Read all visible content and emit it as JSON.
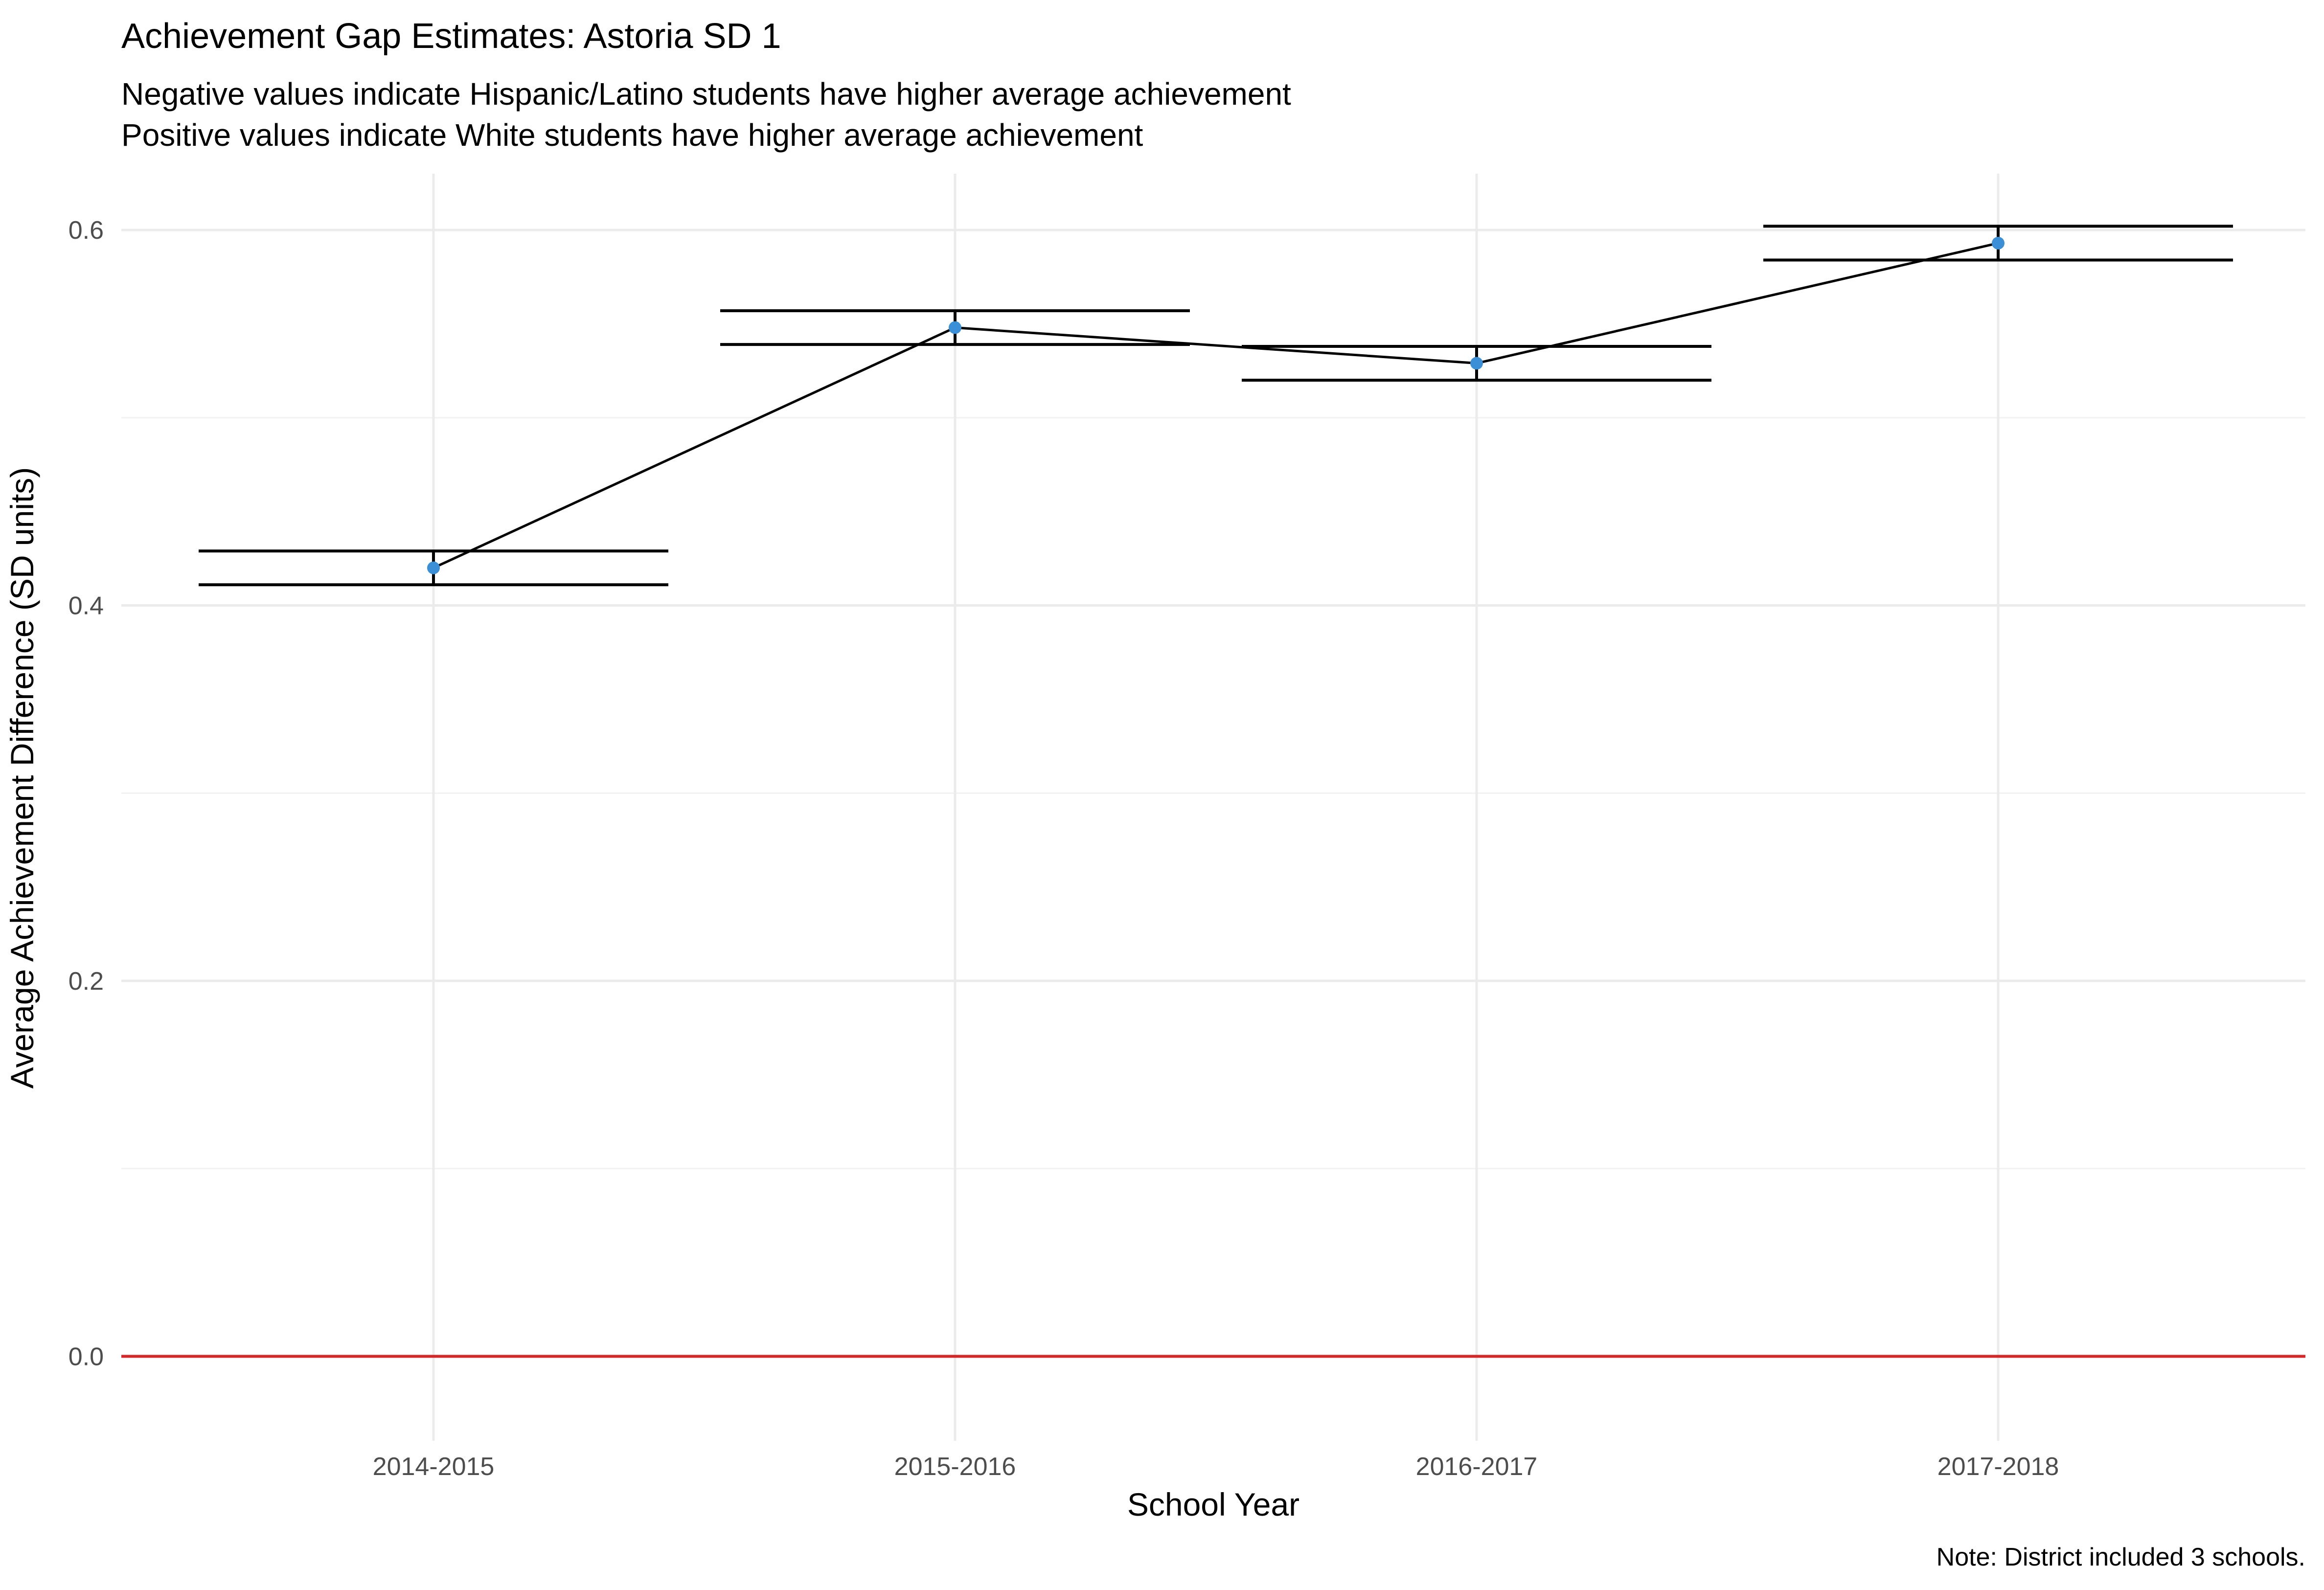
{
  "chart_data": {
    "type": "line",
    "title": "Achievement Gap Estimates: Astoria SD 1",
    "subtitle": [
      "Negative values indicate Hispanic/Latino students have higher average achievement",
      "Positive values indicate White students have higher average achievement"
    ],
    "xlabel": "School Year",
    "ylabel": "Average Achievement Difference (SD units)",
    "caption": "Note: District included 3 schools.",
    "categories": [
      "2014-2015",
      "2015-2016",
      "2016-2017",
      "2017-2018"
    ],
    "series": [
      {
        "values": [
          0.42,
          0.548,
          0.529,
          0.593
        ],
        "lower": [
          0.411,
          0.539,
          0.52,
          0.584
        ],
        "upper": [
          0.429,
          0.557,
          0.538,
          0.602
        ],
        "point_color": "#3a8fd6"
      }
    ],
    "ylim": [
      -0.045,
      0.63
    ],
    "y_ticks": [
      0.0,
      0.2,
      0.4,
      0.6
    ],
    "y_tick_labels": [
      "0.0",
      "0.2",
      "0.4",
      "0.6"
    ],
    "y_minor_ticks": [
      0.1,
      0.3,
      0.5
    ],
    "reference_line": {
      "y": 0.0,
      "color": "#d62728"
    },
    "grid": true
  }
}
